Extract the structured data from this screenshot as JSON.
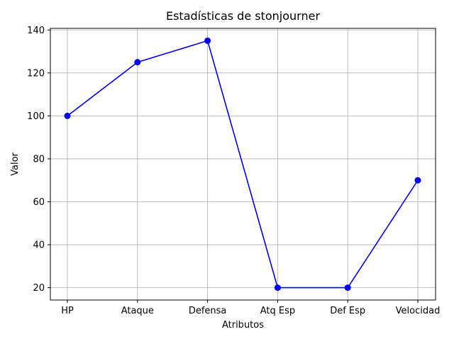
{
  "chart_data": {
    "type": "line",
    "title": "Estadísticas de stonjourner",
    "xlabel": "Atributos",
    "ylabel": "Valor",
    "categories": [
      "HP",
      "Ataque",
      "Defensa",
      "Atq Esp",
      "Def Esp",
      "Velocidad"
    ],
    "series": [
      {
        "values": [
          100,
          125,
          135,
          20,
          20,
          70
        ],
        "color": "#0000ff",
        "marker": "circle"
      }
    ],
    "ylim": [
      14.25,
      140.75
    ],
    "yticks": [
      20,
      40,
      60,
      80,
      100,
      120,
      140
    ],
    "grid": true
  }
}
